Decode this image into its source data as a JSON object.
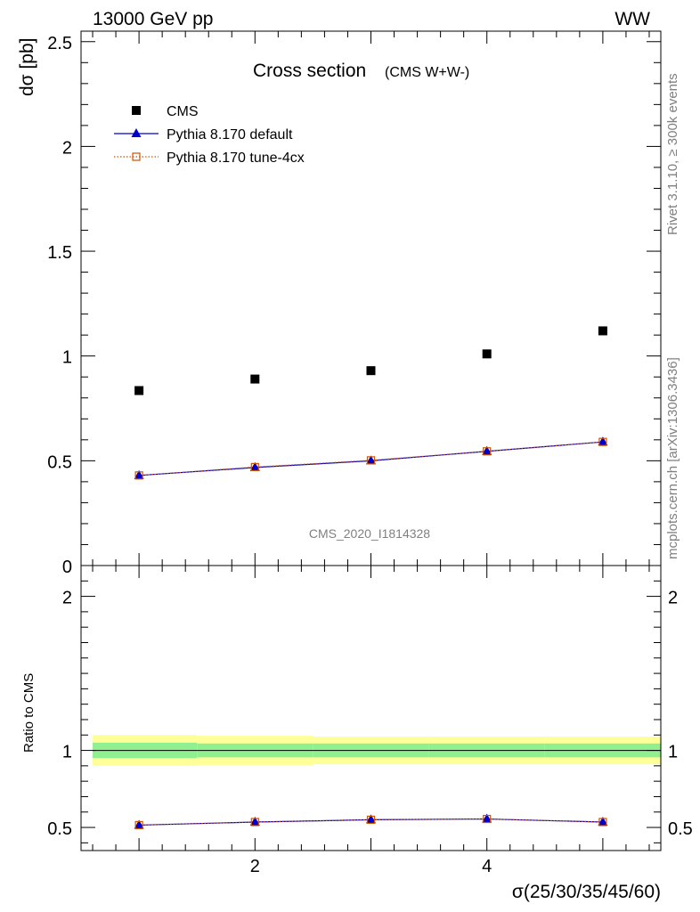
{
  "header": {
    "left": "13000 GeV pp",
    "right": "WW"
  },
  "side_labels": {
    "rivet": "Rivet 3.1.10, ≥ 300k events",
    "mcplots": "mcplots.cern.ch [arXiv:1306.3436]"
  },
  "chart_data": [
    {
      "type": "scatter",
      "panel": "main",
      "title": "Cross section",
      "subtitle": "(CMS W+W-)",
      "watermark": "CMS_2020_I1814328",
      "ylabel": "dσ [pb]",
      "xlabel": "",
      "xlim": [
        0.5,
        5.5
      ],
      "ylim": [
        0,
        2.55
      ],
      "yticks": [
        0,
        0.5,
        1,
        1.5,
        2,
        2.5
      ],
      "ytick_labels": [
        "0",
        "0.5",
        "1",
        "1.5",
        "2",
        "2.5"
      ],
      "legend_placement": "top-left",
      "x": [
        1,
        2,
        3,
        4,
        5
      ],
      "series": [
        {
          "name": "CMS",
          "style": "data",
          "marker": "square",
          "color": "#000000",
          "values": [
            0.835,
            0.89,
            0.93,
            1.01,
            1.12
          ]
        },
        {
          "name": "Pythia 8.170 default",
          "style": "line",
          "marker": "triangle",
          "color": "#0000cc",
          "values": [
            0.43,
            0.468,
            0.5,
            0.545,
            0.59
          ]
        },
        {
          "name": "Pythia 8.170 tune-4cx",
          "style": "dotted",
          "marker": "open-square",
          "color": "#cc5500",
          "values": [
            0.43,
            0.47,
            0.502,
            0.545,
            0.59
          ]
        }
      ]
    },
    {
      "type": "scatter",
      "panel": "ratio",
      "ylabel": "Ratio to CMS",
      "xlabel": "σ(25/30/35/45/60)",
      "xlim": [
        0.5,
        5.5
      ],
      "ylim": [
        0.35,
        2.2
      ],
      "yticks": [
        0.5,
        1,
        2
      ],
      "ytick_labels": [
        "0.5",
        "1",
        "2"
      ],
      "xticks": [
        2,
        4
      ],
      "xtick_labels": [
        "2",
        "4"
      ],
      "reference_line": 1,
      "band_colors": {
        "inner": "#90f090",
        "outer": "#ffff99"
      },
      "bands": [
        {
          "x0": 0.6,
          "x1": 1.5,
          "inner": [
            0.95,
            1.05
          ],
          "outer": [
            0.9,
            1.1
          ]
        },
        {
          "x0": 1.5,
          "x1": 2.5,
          "inner": [
            0.955,
            1.045
          ],
          "outer": [
            0.905,
            1.095
          ]
        },
        {
          "x0": 2.5,
          "x1": 3.5,
          "inner": [
            0.955,
            1.045
          ],
          "outer": [
            0.91,
            1.09
          ]
        },
        {
          "x0": 3.5,
          "x1": 4.5,
          "inner": [
            0.955,
            1.045
          ],
          "outer": [
            0.91,
            1.09
          ]
        },
        {
          "x0": 4.5,
          "x1": 5.5,
          "inner": [
            0.955,
            1.045
          ],
          "outer": [
            0.91,
            1.09
          ]
        }
      ],
      "x": [
        1,
        2,
        3,
        4,
        5
      ],
      "series": [
        {
          "name": "Pythia 8.170 default",
          "style": "line",
          "marker": "triangle",
          "color": "#0000cc",
          "values": [
            0.515,
            0.535,
            0.55,
            0.555,
            0.535
          ]
        },
        {
          "name": "Pythia 8.170 tune-4cx",
          "style": "dotted",
          "marker": "open-square",
          "color": "#cc5500",
          "values": [
            0.515,
            0.535,
            0.55,
            0.555,
            0.535
          ]
        }
      ]
    }
  ]
}
